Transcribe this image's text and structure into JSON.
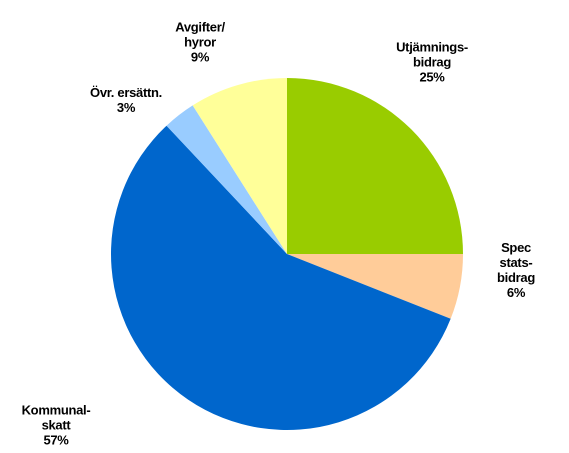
{
  "chart_data": {
    "type": "pie",
    "categories": [
      "Utjämnings-\nbidrag",
      "Spec stats-\nbidrag",
      "Kommunal-\nskatt",
      "Övr. ersättn.",
      "Avgifter/\nhyror"
    ],
    "values": [
      25,
      6,
      57,
      3,
      9
    ],
    "value_labels": [
      "25%",
      "6%",
      "57%",
      "3%",
      "9%"
    ],
    "colors": [
      "#99cc00",
      "#ffcc99",
      "#0066cc",
      "#99ccff",
      "#ffff99"
    ]
  }
}
